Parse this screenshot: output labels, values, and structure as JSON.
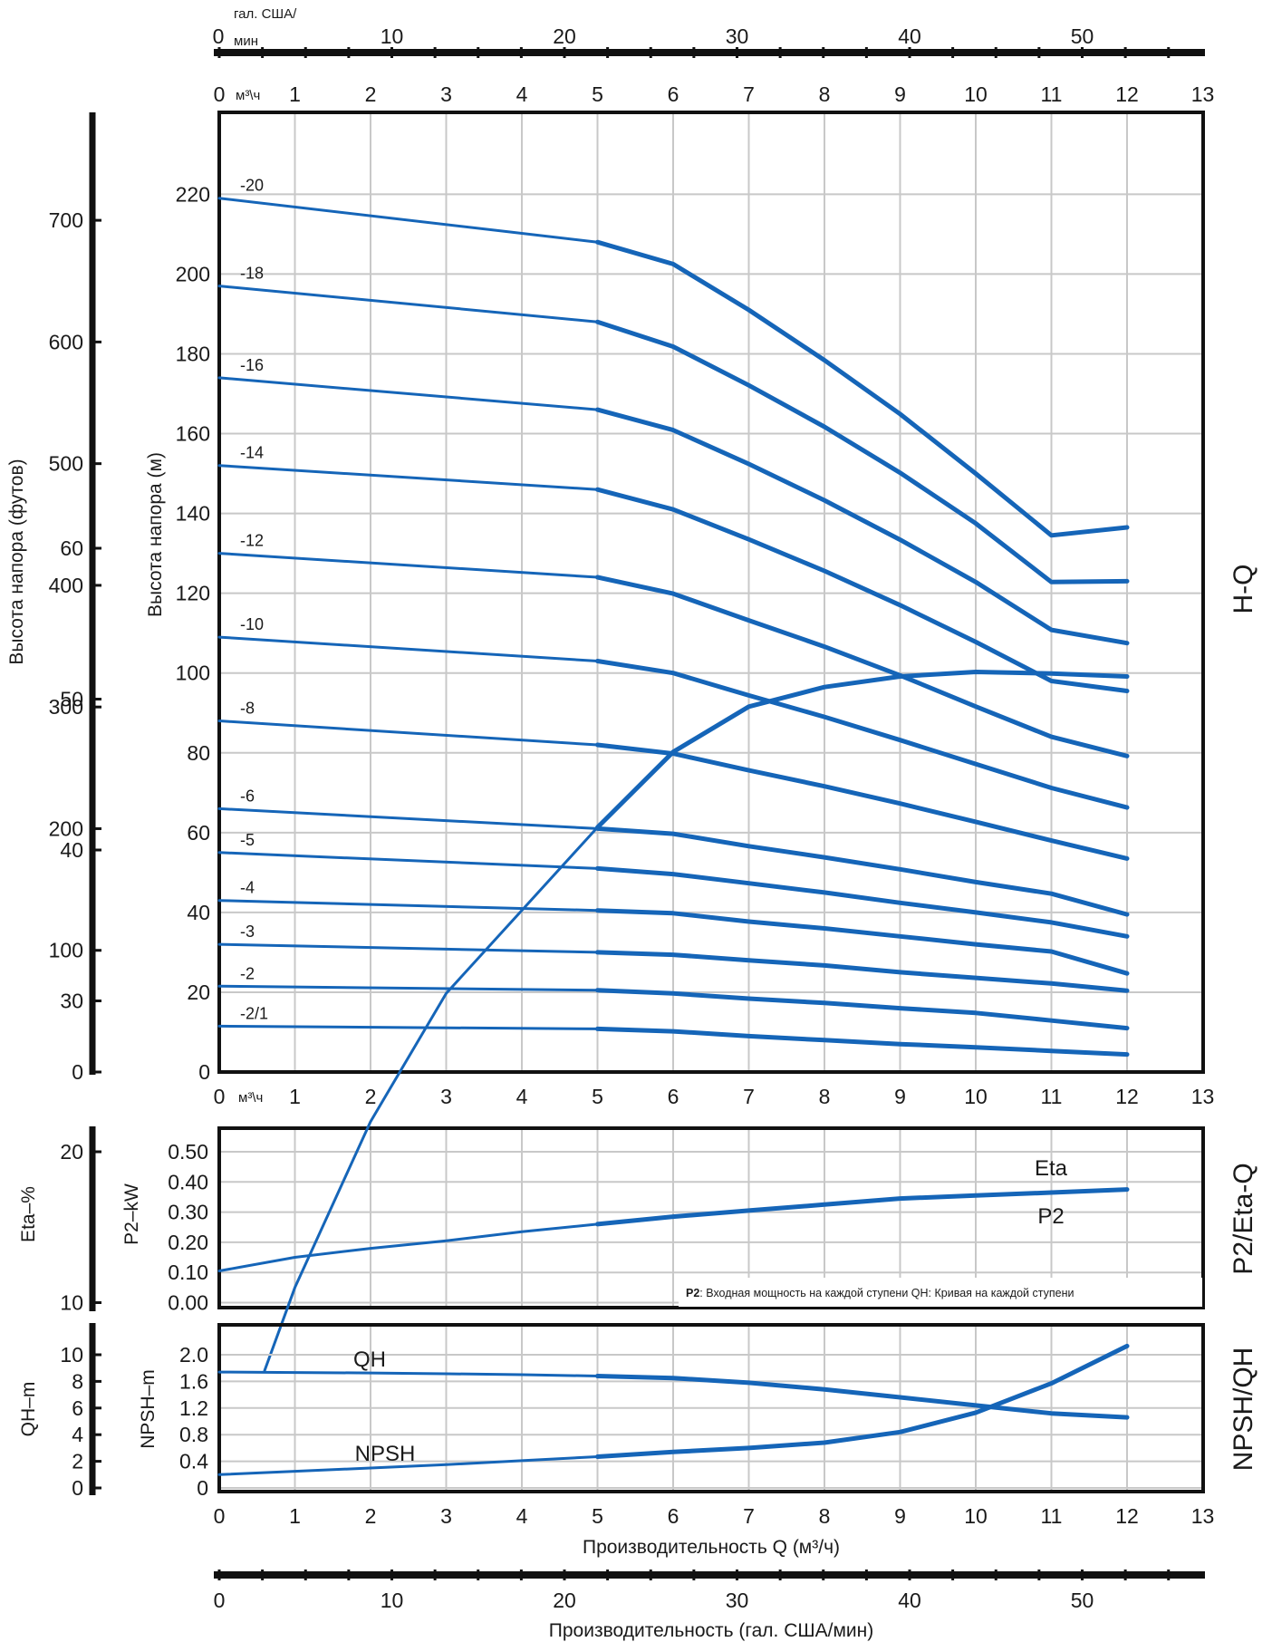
{
  "chart_data": [
    {
      "type": "line",
      "panel": "H-Q",
      "title": "H-Q",
      "xlabel": "",
      "ylabel": "Высота напора (м)",
      "ylabel_secondary": "Высота напора (футов)",
      "x_unit": "м³\\ч",
      "x_unit_top": "гал. США/ мин",
      "xlim": [
        0,
        13
      ],
      "ylim": [
        0,
        240
      ],
      "y_ticks": [
        0,
        20,
        40,
        60,
        80,
        100,
        120,
        140,
        160,
        180,
        200,
        220
      ],
      "y_ticks_ft": [
        0,
        100,
        200,
        300,
        400,
        500,
        600,
        700
      ],
      "x_ticks": [
        0,
        1,
        2,
        3,
        4,
        5,
        6,
        7,
        8,
        9,
        10,
        11,
        12,
        13
      ],
      "x_ticks_gpm": [
        0,
        10,
        20,
        30,
        40,
        50
      ],
      "grid": true,
      "x": [
        0,
        5,
        6,
        7,
        8,
        9,
        10,
        11,
        12
      ],
      "series": [
        {
          "name": "-2/1",
          "values": [
            11.5,
            10.8,
            10.2,
            9.0,
            8.0,
            7.0,
            6.2,
            5.3,
            4.4
          ]
        },
        {
          "name": "-2",
          "values": [
            21.5,
            20.5,
            19.7,
            18.4,
            17.3,
            16.0,
            14.8,
            12.9,
            11.0
          ]
        },
        {
          "name": "-3",
          "values": [
            32.0,
            30.0,
            29.4,
            28.0,
            26.7,
            25.0,
            23.6,
            22.2,
            20.4
          ]
        },
        {
          "name": "-4",
          "values": [
            43.0,
            40.5,
            39.8,
            37.7,
            36.0,
            34.0,
            32.0,
            30.2,
            24.7
          ]
        },
        {
          "name": "-5",
          "values": [
            55.0,
            51.0,
            49.6,
            47.3,
            45.0,
            42.4,
            40.0,
            37.5,
            34.0
          ]
        },
        {
          "name": "-6",
          "values": [
            66.0,
            61.0,
            59.7,
            56.6,
            53.8,
            50.8,
            47.6,
            44.7,
            39.5
          ]
        },
        {
          "name": "-8",
          "values": [
            88.0,
            82.0,
            79.8,
            75.6,
            71.6,
            67.3,
            62.7,
            58.0,
            53.5
          ]
        },
        {
          "name": "-10",
          "values": [
            109.0,
            103.0,
            100.0,
            94.4,
            89.0,
            83.2,
            77.2,
            71.2,
            66.3
          ]
        },
        {
          "name": "-12",
          "values": [
            130.0,
            124.0,
            119.9,
            113.2,
            106.6,
            99.4,
            91.6,
            84.0,
            79.2
          ]
        },
        {
          "name": "-14",
          "values": [
            152.0,
            146.0,
            141.0,
            133.5,
            125.6,
            117.0,
            107.8,
            98.0,
            95.5
          ]
        },
        {
          "name": "-16",
          "values": [
            174.0,
            166.0,
            160.9,
            152.4,
            143.3,
            133.4,
            122.8,
            110.8,
            107.5
          ]
        },
        {
          "name": "-18",
          "values": [
            197.0,
            188.0,
            181.8,
            172.1,
            161.7,
            150.2,
            137.5,
            122.8,
            123.0
          ]
        },
        {
          "name": "-20",
          "values": [
            219.0,
            208.0,
            202.5,
            191.0,
            178.4,
            164.9,
            150.0,
            134.5,
            136.5
          ]
        }
      ]
    },
    {
      "type": "line",
      "panel": "P2/Eta-Q",
      "title": "P2/Eta-Q",
      "ylabel": "P2–kW",
      "ylabel_secondary": "Eta–%",
      "xlim": [
        0,
        13
      ],
      "ylim": [
        0,
        0.6
      ],
      "y_ticks": [
        "0.00",
        "0.10",
        "0.20",
        "0.30",
        "0.40",
        "0.50"
      ],
      "y_ticks_secondary": [
        10,
        20,
        30,
        40,
        50,
        60
      ],
      "grid": true,
      "series": [
        {
          "name": "Eta",
          "unit": "%",
          "x": [
            0.6,
            1,
            2,
            3,
            4,
            5,
            6,
            7,
            8,
            9,
            10,
            11,
            12
          ],
          "values": [
            5.5,
            11,
            22,
            30.5,
            36,
            41.5,
            46.5,
            49.5,
            50.8,
            51.5,
            51.8,
            51.7,
            51.5
          ]
        },
        {
          "name": "P2",
          "unit": "kW",
          "x": [
            0,
            1,
            2,
            3,
            4,
            5,
            6,
            7,
            8,
            9,
            10,
            11,
            12
          ],
          "values": [
            0.105,
            0.15,
            0.18,
            0.205,
            0.235,
            0.26,
            0.285,
            0.305,
            0.325,
            0.345,
            0.355,
            0.365,
            0.375
          ]
        }
      ],
      "note_bold": "P2",
      "note": ": Входная мощность на каждой ступени QH: Кривая на каждой ступени"
    },
    {
      "type": "line",
      "panel": "NPSH/QH",
      "title": "NPSH/QH",
      "ylabel": "NPSH–m",
      "ylabel_secondary": "QH–m",
      "xlabel": "Производительность Q (м³/ч)",
      "xlabel_bottom": "Производительность (гал. США/мин)",
      "xlim": [
        0,
        13
      ],
      "ylim": [
        0,
        2.4
      ],
      "y_ticks": [
        "0",
        "0.4",
        "0.8",
        "1.2",
        "1.6",
        "2.0"
      ],
      "y_ticks_secondary": [
        0,
        2,
        4,
        6,
        8,
        10
      ],
      "grid": true,
      "series": [
        {
          "name": "QH",
          "unit": "m",
          "x": [
            0,
            1,
            2,
            3,
            4,
            5,
            6,
            7,
            8,
            9,
            10,
            11,
            12
          ],
          "values": [
            8.7,
            8.67,
            8.63,
            8.57,
            8.5,
            8.4,
            8.25,
            7.9,
            7.4,
            6.8,
            6.2,
            5.6,
            5.3
          ]
        },
        {
          "name": "NPSH",
          "unit": "m",
          "x": [
            0,
            1,
            2,
            3,
            4,
            5,
            6,
            7,
            8,
            9,
            10,
            11,
            12
          ],
          "values": [
            0.2,
            0.25,
            0.3,
            0.35,
            0.41,
            0.47,
            0.54,
            0.6,
            0.68,
            0.84,
            1.13,
            1.57,
            2.13
          ]
        }
      ]
    }
  ]
}
